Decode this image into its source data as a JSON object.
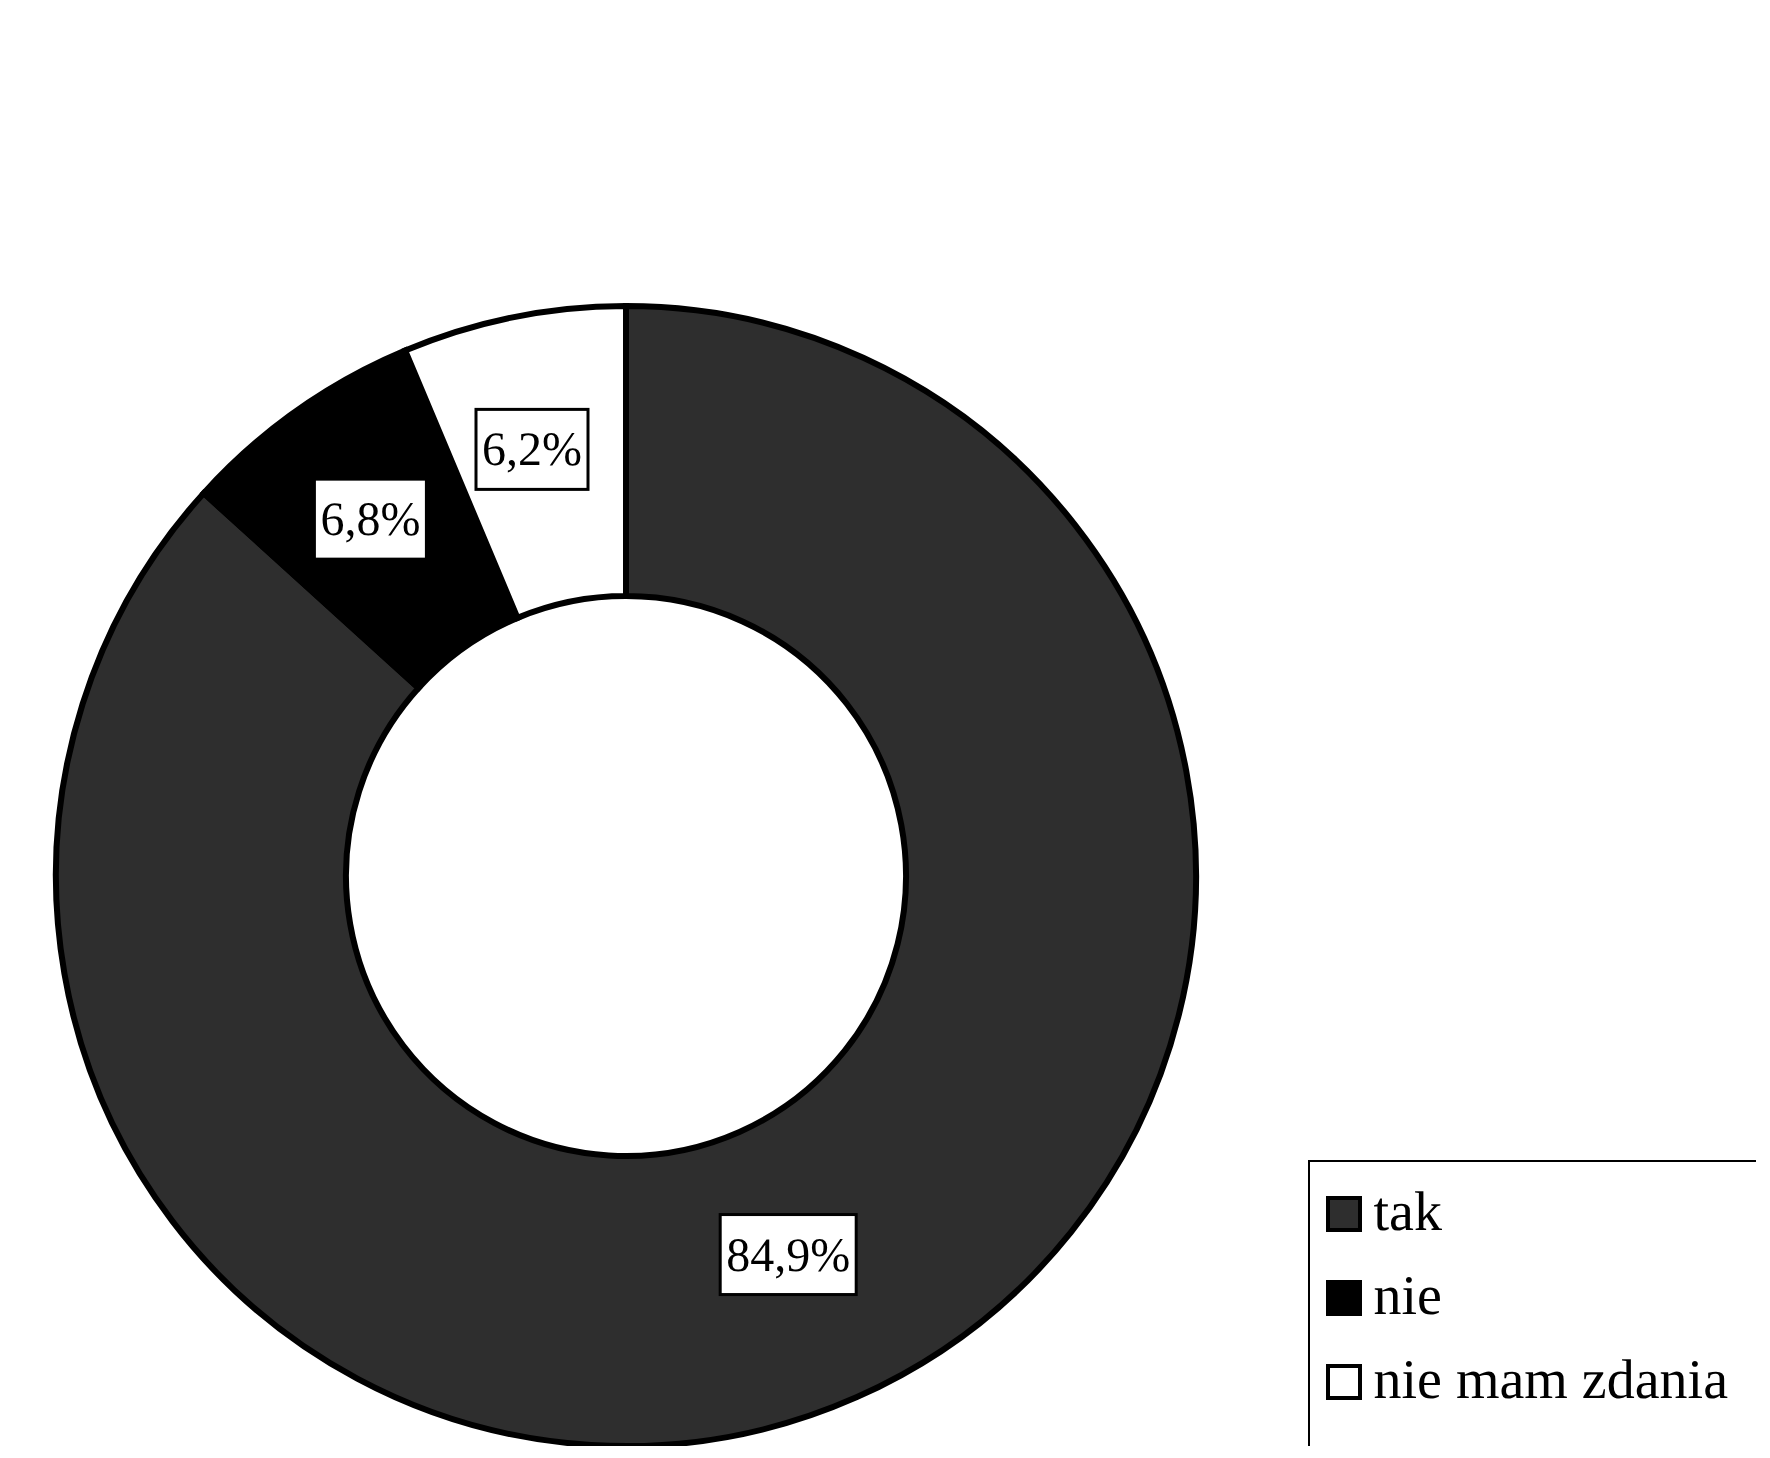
{
  "chart_data": {
    "type": "donut",
    "categories": [
      "tak",
      "nie",
      "nie mam zdania"
    ],
    "values": [
      84.9,
      6.8,
      6.2
    ],
    "value_labels": [
      "84,9%",
      "6,8%",
      "6,2%"
    ],
    "colors": [
      "#2e2e2e",
      "#000000",
      "#ffffff"
    ],
    "legend": "bottom right"
  }
}
